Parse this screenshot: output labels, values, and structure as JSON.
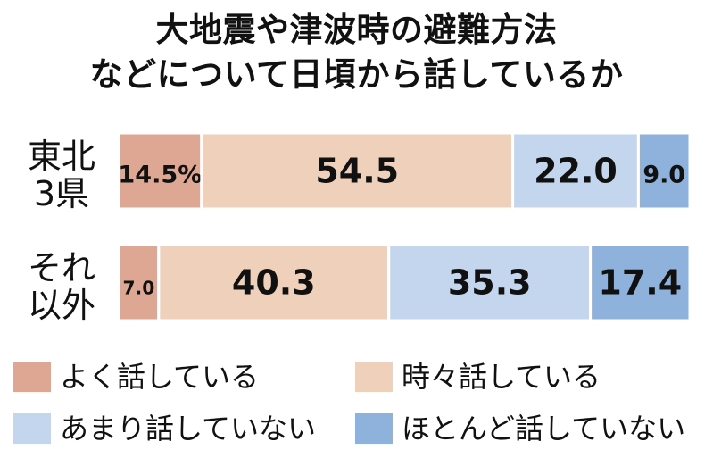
{
  "title": {
    "line1": "大地震や津波時の避難方法",
    "line2": "などについて日頃から話しているか"
  },
  "colors": {
    "often": "#dea793",
    "sometimes": "#efd1bb",
    "rarely": "#c4d6ee",
    "never": "#8fb2dd",
    "text": "#111111"
  },
  "chart_data": {
    "type": "bar",
    "orientation": "horizontal",
    "stacked": true,
    "percent_stacked": true,
    "categories": [
      {
        "line1": "東北",
        "line2": "3県"
      },
      {
        "line1": "それ",
        "line2": "以外"
      }
    ],
    "series": [
      {
        "name": "よく話している",
        "color": "#dea793",
        "values": [
          14.5,
          7.0
        ],
        "labels": [
          "14.5%",
          "7.0"
        ]
      },
      {
        "name": "時々話している",
        "color": "#efd1bb",
        "values": [
          54.5,
          40.3
        ],
        "labels": [
          "54.5",
          "40.3"
        ]
      },
      {
        "name": "あまり話していない",
        "color": "#c4d6ee",
        "values": [
          22.0,
          35.3
        ],
        "labels": [
          "22.0",
          "35.3"
        ]
      },
      {
        "name": "ほとんど話していない",
        "color": "#8fb2dd",
        "values": [
          9.0,
          17.4
        ],
        "labels": [
          "9.0",
          "17.4"
        ]
      }
    ],
    "legend_position": "bottom",
    "grid": false
  }
}
